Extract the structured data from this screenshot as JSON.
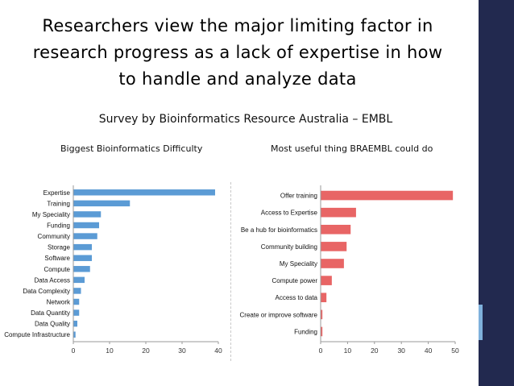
{
  "slide": {
    "title_lines": [
      "Researchers view the major limiting factor in",
      "research progress as a lack of expertise in how",
      "to handle and analyze data"
    ],
    "subtitle": "Survey by Bioinformatics Resource Australia – EMBL",
    "colors": {
      "sidebar": "#22294f",
      "sidebar_accent": "#7fb1dc"
    }
  },
  "chart_data": [
    {
      "type": "bar",
      "orientation": "horizontal",
      "caption": "Biggest Bioinformatics Difficulty",
      "categories": [
        "Expertise",
        "Training",
        "My Speciality",
        "Funding",
        "Community",
        "Storage",
        "Software",
        "Compute",
        "Data Access",
        "Data Complexity",
        "Network",
        "Data Quantity",
        "Data Quality",
        "Compute Infrastructure"
      ],
      "values": [
        39,
        15.5,
        7.5,
        7,
        6.5,
        5,
        5,
        4.5,
        3,
        2,
        1.5,
        1.5,
        1,
        0.5
      ],
      "xlim": [
        0,
        40
      ],
      "xticks": [
        "0",
        "10",
        "20",
        "30",
        "40"
      ],
      "color": "#5b9bd5",
      "grid": false
    },
    {
      "type": "bar",
      "orientation": "horizontal",
      "caption": "Most useful thing BRAEMBL could do",
      "categories": [
        "Offer training",
        "Access to Expertise",
        "Be a hub for bioinformatics",
        "Community building",
        "My Speciality",
        "Compute power",
        "Access to data",
        "Create or improve software",
        "Funding"
      ],
      "values": [
        49,
        13,
        11,
        9.5,
        8.5,
        4,
        2,
        0.5,
        0.5
      ],
      "xlim": [
        0,
        50
      ],
      "xticks": [
        "0",
        "10",
        "20",
        "30",
        "40",
        "50"
      ],
      "color": "#e86565",
      "grid": false
    }
  ]
}
